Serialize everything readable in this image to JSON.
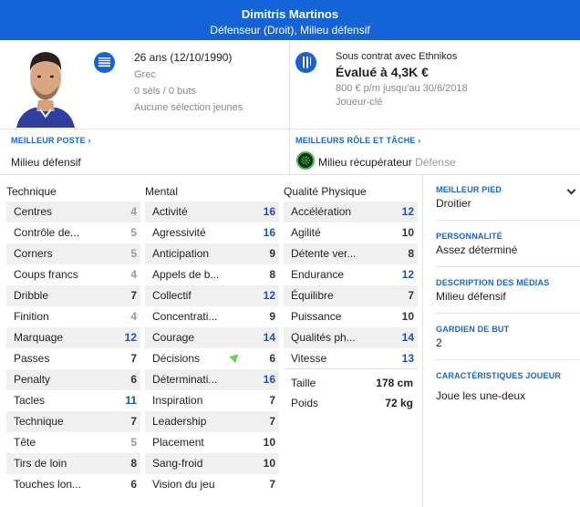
{
  "header": {
    "name": "Dimitris Martinos",
    "positions": "Défenseur (Droit), Milieu défensif"
  },
  "personal": {
    "age": "26 ans (12/10/1990)",
    "nationality": "Grec",
    "caps": "0 séls / 0 buts",
    "youth": "Aucune sélection jeunes"
  },
  "contract": {
    "club_text": "Sous contrat avec Ethnikos",
    "value": "Évalué à 4,3K €",
    "wage": "800 € p/m jusqu'au 30/6/2018",
    "status": "Joueur-clé"
  },
  "roles": {
    "best_position_label": "MEILLEUR POSTE",
    "best_position": "Milieu défensif",
    "best_role_label": "MEILLEURS RÔLE ET TÂCHE",
    "best_role": "Milieu récupérateur",
    "best_duty": "Défense"
  },
  "technique": {
    "title": "Technique",
    "rows": [
      {
        "name": "Centres",
        "value": "4"
      },
      {
        "name": "Contrôle de...",
        "value": "5"
      },
      {
        "name": "Corners",
        "value": "5"
      },
      {
        "name": "Coups francs",
        "value": "4"
      },
      {
        "name": "Dribble",
        "value": "7"
      },
      {
        "name": "Finition",
        "value": "4"
      },
      {
        "name": "Marquage",
        "value": "12"
      },
      {
        "name": "Passes",
        "value": "7"
      },
      {
        "name": "Penalty",
        "value": "6"
      },
      {
        "name": "Tacles",
        "value": "11"
      },
      {
        "name": "Technique",
        "value": "7"
      },
      {
        "name": "Tête",
        "value": "5"
      },
      {
        "name": "Tirs de loin",
        "value": "8"
      },
      {
        "name": "Touches lon...",
        "value": "6"
      }
    ]
  },
  "mental": {
    "title": "Mental",
    "rows": [
      {
        "name": "Activité",
        "value": "16"
      },
      {
        "name": "Agressivité",
        "value": "16"
      },
      {
        "name": "Anticipation",
        "value": "9"
      },
      {
        "name": "Appels de b...",
        "value": "8"
      },
      {
        "name": "Collectif",
        "value": "12"
      },
      {
        "name": "Concentrati...",
        "value": "9"
      },
      {
        "name": "Courage",
        "value": "14"
      },
      {
        "name": "Décisions",
        "value": "6"
      },
      {
        "name": "Déterminati...",
        "value": "16"
      },
      {
        "name": "Inspiration",
        "value": "7"
      },
      {
        "name": "Leadership",
        "value": "7"
      },
      {
        "name": "Placement",
        "value": "10"
      },
      {
        "name": "Sang-froid",
        "value": "10"
      },
      {
        "name": "Vision du jeu",
        "value": "7"
      }
    ]
  },
  "physical": {
    "title": "Qualité Physique",
    "rows": [
      {
        "name": "Accélération",
        "value": "12"
      },
      {
        "name": "Agilité",
        "value": "10"
      },
      {
        "name": "Détente ver...",
        "value": "8"
      },
      {
        "name": "Endurance",
        "value": "12"
      },
      {
        "name": "Équilibre",
        "value": "7"
      },
      {
        "name": "Puissance",
        "value": "10"
      },
      {
        "name": "Qualités ph...",
        "value": "14"
      },
      {
        "name": "Vitesse",
        "value": "13"
      }
    ],
    "height_label": "Taille",
    "height": "178 cm",
    "weight_label": "Poids",
    "weight": "72 kg"
  },
  "side": {
    "foot_label": "MEILLEUR PIED",
    "foot": "Droitier",
    "personality_label": "PERSONNALITÉ",
    "personality": "Assez déterminé",
    "media_label": "DESCRIPTION DES MÉDIAS",
    "media": "Milieu défensif",
    "gk_label": "GARDIEN DE BUT",
    "gk": "2",
    "traits_label": "CARACTÉRISTIQUES JOUEUR",
    "traits": "Joue les une-deux"
  },
  "colors": {
    "accent": "#1464d8",
    "high_value": "#1f4fb8",
    "low_value": "#999999",
    "improve_arrow": "#6ad15a"
  },
  "icons": {
    "flag": "greece-flag-icon",
    "club": "ethnikos-badge-icon",
    "role": "role-icon",
    "chevron": "chevron-down-icon",
    "arrow": "arrow-up-icon"
  }
}
